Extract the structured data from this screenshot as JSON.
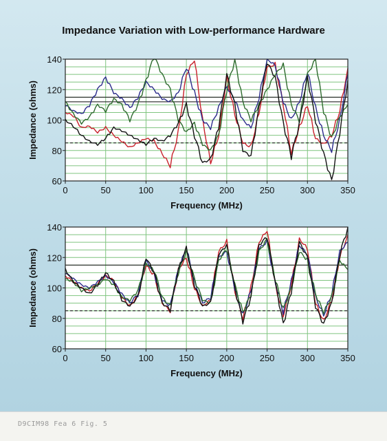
{
  "title": "Impedance Variation with Low-performance Hardware",
  "caption": "D9CIM98 Fea 6 Fig. 5",
  "chart_data": [
    {
      "type": "line",
      "xlabel": "Frequency (MHz)",
      "ylabel": "Impedance (ohms)",
      "xlim": [
        0,
        350
      ],
      "ylim": [
        60,
        140
      ],
      "xticks": [
        "0",
        "50",
        "100",
        "150",
        "200",
        "250",
        "300",
        "350"
      ],
      "yticks": [
        "60",
        "80",
        "100",
        "120",
        "140"
      ],
      "grid": true,
      "reference_lines": [
        {
          "style": "solid",
          "values": [
            115,
            112
          ]
        },
        {
          "style": "dashed",
          "values": [
            85
          ]
        }
      ],
      "series": [
        {
          "color": "#c8202a",
          "x": [
            0,
            10,
            20,
            30,
            40,
            50,
            60,
            70,
            80,
            90,
            100,
            110,
            120,
            130,
            140,
            150,
            160,
            170,
            180,
            190,
            200,
            210,
            220,
            230,
            240,
            250,
            260,
            270,
            280,
            290,
            300,
            310,
            320,
            330,
            340,
            350
          ],
          "y": [
            105,
            103,
            95,
            96,
            92,
            95,
            90,
            86,
            82,
            85,
            88,
            86,
            78,
            70,
            92,
            130,
            140,
            100,
            72,
            90,
            128,
            104,
            85,
            82,
            105,
            135,
            136,
            110,
            78,
            95,
            110,
            88,
            84,
            90,
            106,
            134
          ]
        },
        {
          "color": "#2a2a8a",
          "x": [
            0,
            10,
            20,
            30,
            40,
            50,
            60,
            70,
            80,
            90,
            100,
            110,
            120,
            130,
            140,
            150,
            160,
            170,
            180,
            190,
            200,
            210,
            220,
            230,
            240,
            250,
            260,
            270,
            280,
            290,
            300,
            310,
            320,
            330,
            340,
            350
          ],
          "y": [
            110,
            106,
            104,
            110,
            120,
            128,
            118,
            114,
            108,
            115,
            125,
            120,
            114,
            112,
            118,
            135,
            118,
            100,
            95,
            108,
            122,
            113,
            100,
            95,
            115,
            140,
            136,
            112,
            100,
            112,
            132,
            108,
            90,
            80,
            100,
            130
          ]
        },
        {
          "color": "#2e6a2e",
          "x": [
            0,
            10,
            20,
            30,
            40,
            50,
            60,
            70,
            80,
            90,
            100,
            110,
            120,
            130,
            140,
            150,
            160,
            170,
            180,
            190,
            200,
            210,
            220,
            230,
            240,
            250,
            260,
            270,
            280,
            290,
            300,
            310,
            320,
            330,
            340,
            350
          ],
          "y": [
            112,
            104,
            98,
            102,
            110,
            106,
            114,
            110,
            100,
            110,
            126,
            142,
            130,
            120,
            100,
            92,
            98,
            84,
            80,
            90,
            120,
            140,
            112,
            100,
            110,
            120,
            130,
            136,
            110,
            100,
            130,
            140,
            106,
            88,
            102,
            110
          ]
        },
        {
          "color": "#111111",
          "x": [
            0,
            10,
            20,
            30,
            40,
            50,
            60,
            70,
            80,
            90,
            100,
            110,
            120,
            130,
            140,
            150,
            160,
            170,
            180,
            190,
            200,
            210,
            220,
            230,
            240,
            250,
            260,
            270,
            280,
            290,
            300,
            310,
            320,
            330,
            340,
            350
          ],
          "y": [
            100,
            96,
            90,
            86,
            84,
            88,
            95,
            93,
            90,
            87,
            84,
            88,
            86,
            90,
            98,
            110,
            90,
            72,
            74,
            96,
            130,
            110,
            80,
            76,
            108,
            138,
            128,
            98,
            76,
            98,
            128,
            100,
            78,
            60,
            92,
            126
          ]
        }
      ]
    },
    {
      "type": "line",
      "xlabel": "Frequency (MHz)",
      "ylabel": "Impedance (ohms)",
      "xlim": [
        0,
        350
      ],
      "ylim": [
        60,
        140
      ],
      "xticks": [
        "0",
        "50",
        "100",
        "150",
        "200",
        "250",
        "300",
        "350"
      ],
      "yticks": [
        "60",
        "80",
        "100",
        "120",
        "140"
      ],
      "grid": true,
      "reference_lines": [
        {
          "style": "solid",
          "values": [
            115
          ]
        },
        {
          "style": "dashed",
          "values": [
            85
          ]
        }
      ],
      "series": [
        {
          "color": "#c8202a",
          "x": [
            0,
            10,
            20,
            30,
            40,
            50,
            60,
            70,
            80,
            90,
            100,
            110,
            120,
            130,
            140,
            150,
            160,
            170,
            180,
            190,
            200,
            210,
            220,
            230,
            240,
            250,
            260,
            270,
            280,
            290,
            300,
            310,
            320,
            330,
            340,
            350
          ],
          "y": [
            108,
            104,
            100,
            98,
            103,
            108,
            105,
            94,
            88,
            95,
            115,
            108,
            90,
            85,
            112,
            120,
            100,
            88,
            92,
            124,
            130,
            98,
            80,
            100,
            130,
            138,
            102,
            82,
            102,
            132,
            126,
            90,
            78,
            92,
            120,
            135
          ]
        },
        {
          "color": "#2a2a8a",
          "x": [
            0,
            10,
            20,
            30,
            40,
            50,
            60,
            70,
            80,
            90,
            100,
            110,
            120,
            130,
            140,
            150,
            160,
            170,
            180,
            190,
            200,
            210,
            220,
            230,
            240,
            250,
            260,
            270,
            280,
            290,
            300,
            310,
            320,
            330,
            340,
            350
          ],
          "y": [
            110,
            106,
            102,
            100,
            104,
            108,
            104,
            96,
            90,
            96,
            118,
            110,
            92,
            88,
            112,
            126,
            104,
            90,
            94,
            120,
            124,
            100,
            82,
            98,
            126,
            130,
            104,
            84,
            104,
            128,
            122,
            94,
            82,
            96,
            124,
            130
          ]
        },
        {
          "color": "#2e6a2e",
          "x": [
            0,
            10,
            20,
            30,
            40,
            50,
            60,
            70,
            80,
            90,
            100,
            110,
            120,
            130,
            140,
            150,
            160,
            170,
            180,
            190,
            200,
            210,
            220,
            230,
            240,
            250,
            260,
            270,
            280,
            290,
            300,
            310,
            320,
            330,
            340,
            350
          ],
          "y": [
            106,
            104,
            98,
            100,
            102,
            106,
            102,
            94,
            92,
            98,
            116,
            112,
            94,
            88,
            110,
            124,
            106,
            92,
            90,
            118,
            126,
            102,
            84,
            96,
            124,
            132,
            106,
            86,
            100,
            124,
            118,
            96,
            84,
            94,
            118,
            112
          ]
        },
        {
          "color": "#111111",
          "x": [
            0,
            10,
            20,
            30,
            40,
            50,
            60,
            70,
            80,
            90,
            100,
            110,
            120,
            130,
            140,
            150,
            160,
            170,
            180,
            190,
            200,
            210,
            220,
            230,
            240,
            250,
            260,
            270,
            280,
            290,
            300,
            310,
            320,
            330,
            340,
            350
          ],
          "y": [
            112,
            104,
            100,
            96,
            102,
            110,
            104,
            92,
            88,
            94,
            120,
            110,
            90,
            86,
            112,
            126,
            102,
            88,
            90,
            122,
            128,
            100,
            78,
            94,
            128,
            134,
            104,
            76,
            98,
            130,
            120,
            88,
            76,
            90,
            122,
            140
          ]
        }
      ]
    }
  ]
}
